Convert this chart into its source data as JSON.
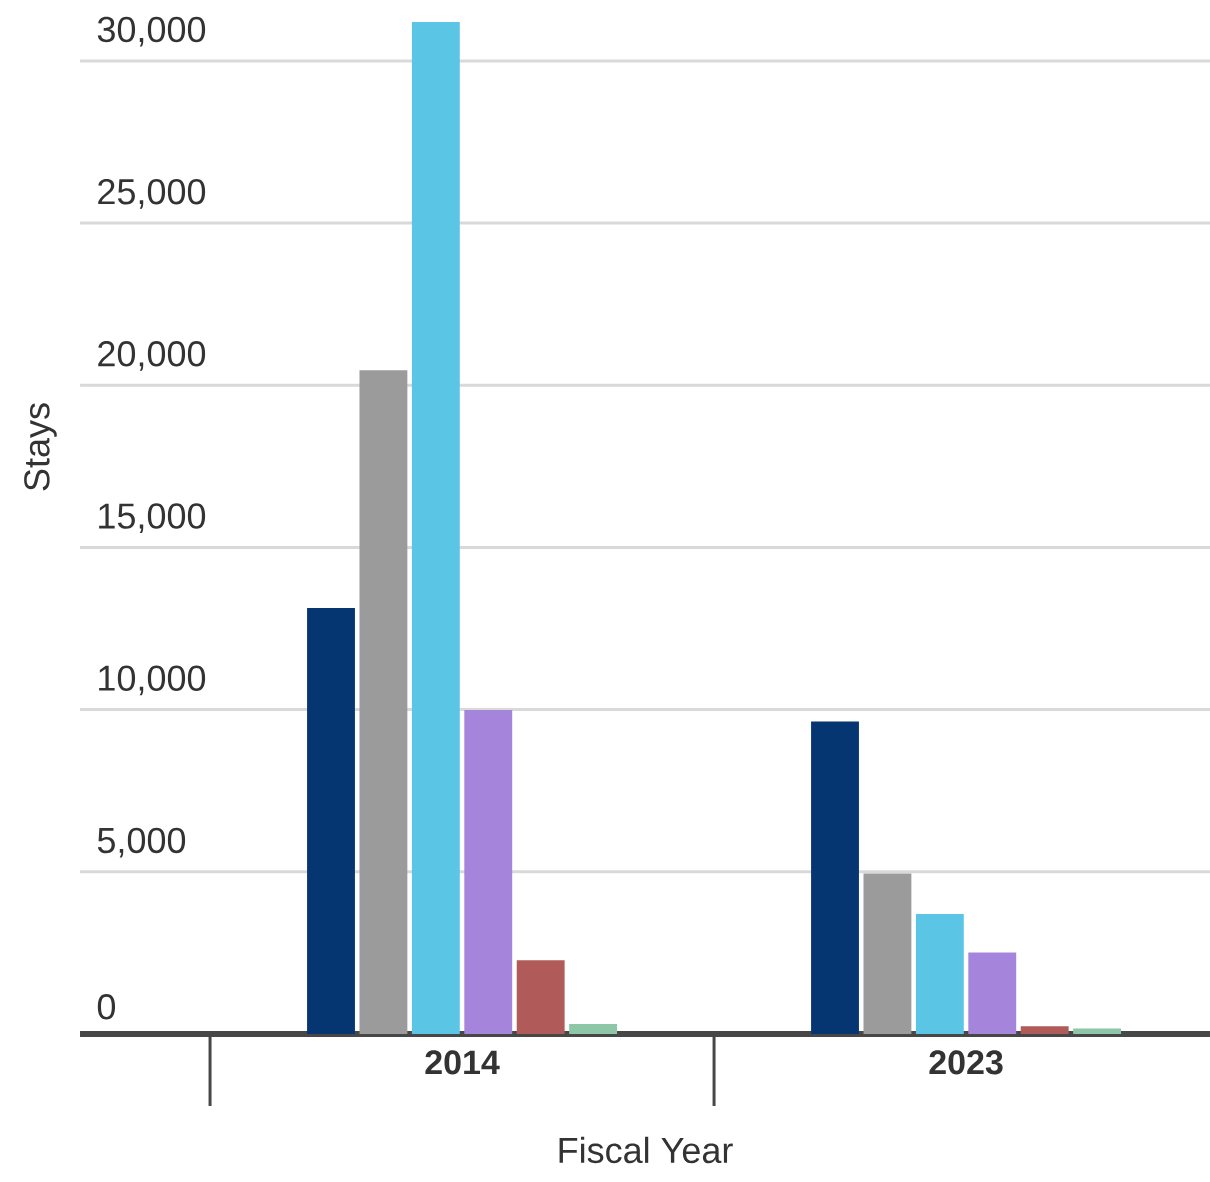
{
  "chart_data": {
    "type": "bar",
    "xlabel": "Fiscal Year",
    "ylabel": "Stays",
    "categories": [
      "2014",
      "2023"
    ],
    "series": [
      {
        "color": "#063672",
        "values": [
          13130,
          9630
        ]
      },
      {
        "color": "#9b9b9b",
        "values": [
          20460,
          4950
        ]
      },
      {
        "color": "#5bc5e5",
        "values": [
          31200,
          3700
        ]
      },
      {
        "color": "#a585dc",
        "values": [
          9990,
          2510
        ]
      },
      {
        "color": "#b05a59",
        "values": [
          2270,
          240
        ]
      },
      {
        "color": "#8ec6a8",
        "values": [
          310,
          170
        ]
      }
    ],
    "ylim": [
      0,
      31200
    ],
    "yticks": [
      0,
      {
        "value": 5000,
        "label": "5,000"
      },
      {
        "value": 10000,
        "label": "10,000"
      },
      {
        "value": 15000,
        "label": "15,000"
      },
      {
        "value": 20000,
        "label": "20,000"
      },
      {
        "value": 25000,
        "label": "25,000"
      },
      {
        "value": 30000,
        "label": "30,000"
      }
    ],
    "grid": "y"
  }
}
